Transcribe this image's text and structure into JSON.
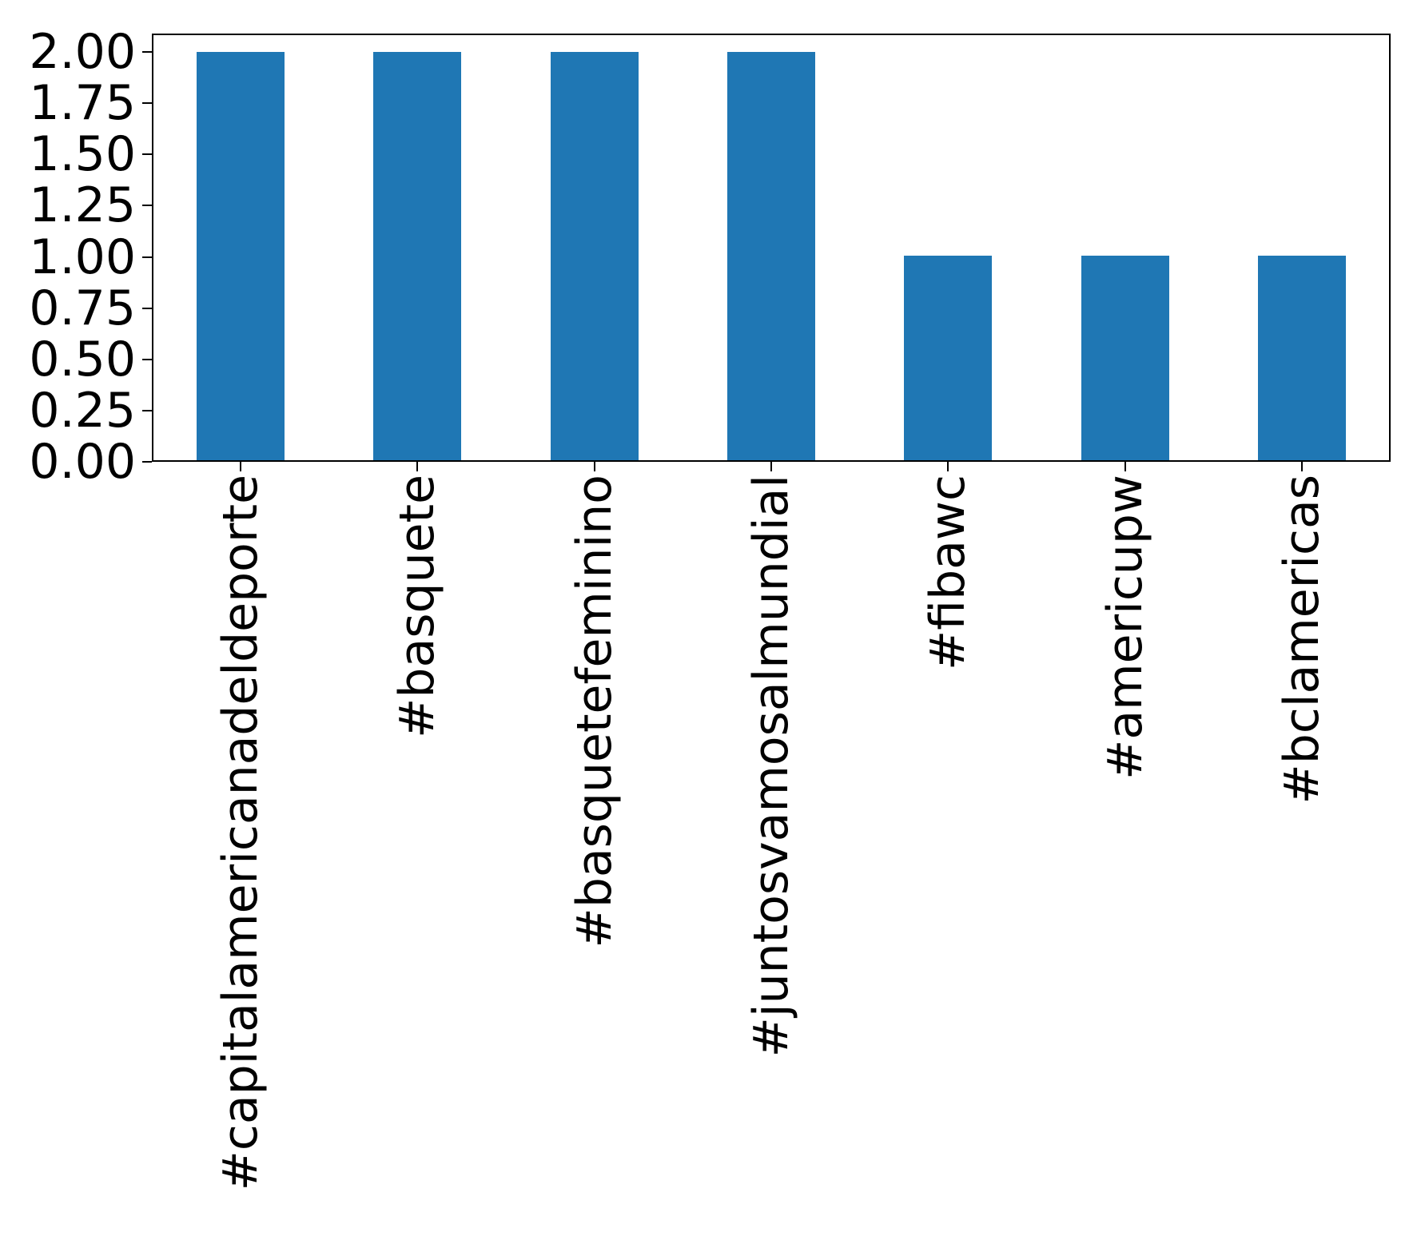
{
  "chart_data": {
    "type": "bar",
    "categories": [
      "#capitalamericanadeldeporte",
      "#basquete",
      "#basquetefeminino",
      "#juntosvamosalmundial",
      "#fibawc",
      "#americupw",
      "#bclamericas"
    ],
    "values": [
      2,
      2,
      2,
      2,
      1,
      1,
      1
    ],
    "title": "",
    "xlabel": "",
    "ylabel": "",
    "ylim": [
      0,
      2.09
    ],
    "yticks": {
      "labels": [
        "0.00",
        "0.25",
        "0.50",
        "0.75",
        "1.00",
        "1.25",
        "1.50",
        "1.75",
        "2.00"
      ],
      "values": [
        0,
        0.25,
        0.5,
        0.75,
        1.0,
        1.25,
        1.5,
        1.75,
        2.0
      ]
    },
    "x_tick_label_rotation": 90,
    "grid": false,
    "legend_position": "none",
    "colors": {
      "bar": "#1f77b4",
      "axis": "#000000",
      "background": "#ffffff",
      "text": "#000000"
    }
  }
}
